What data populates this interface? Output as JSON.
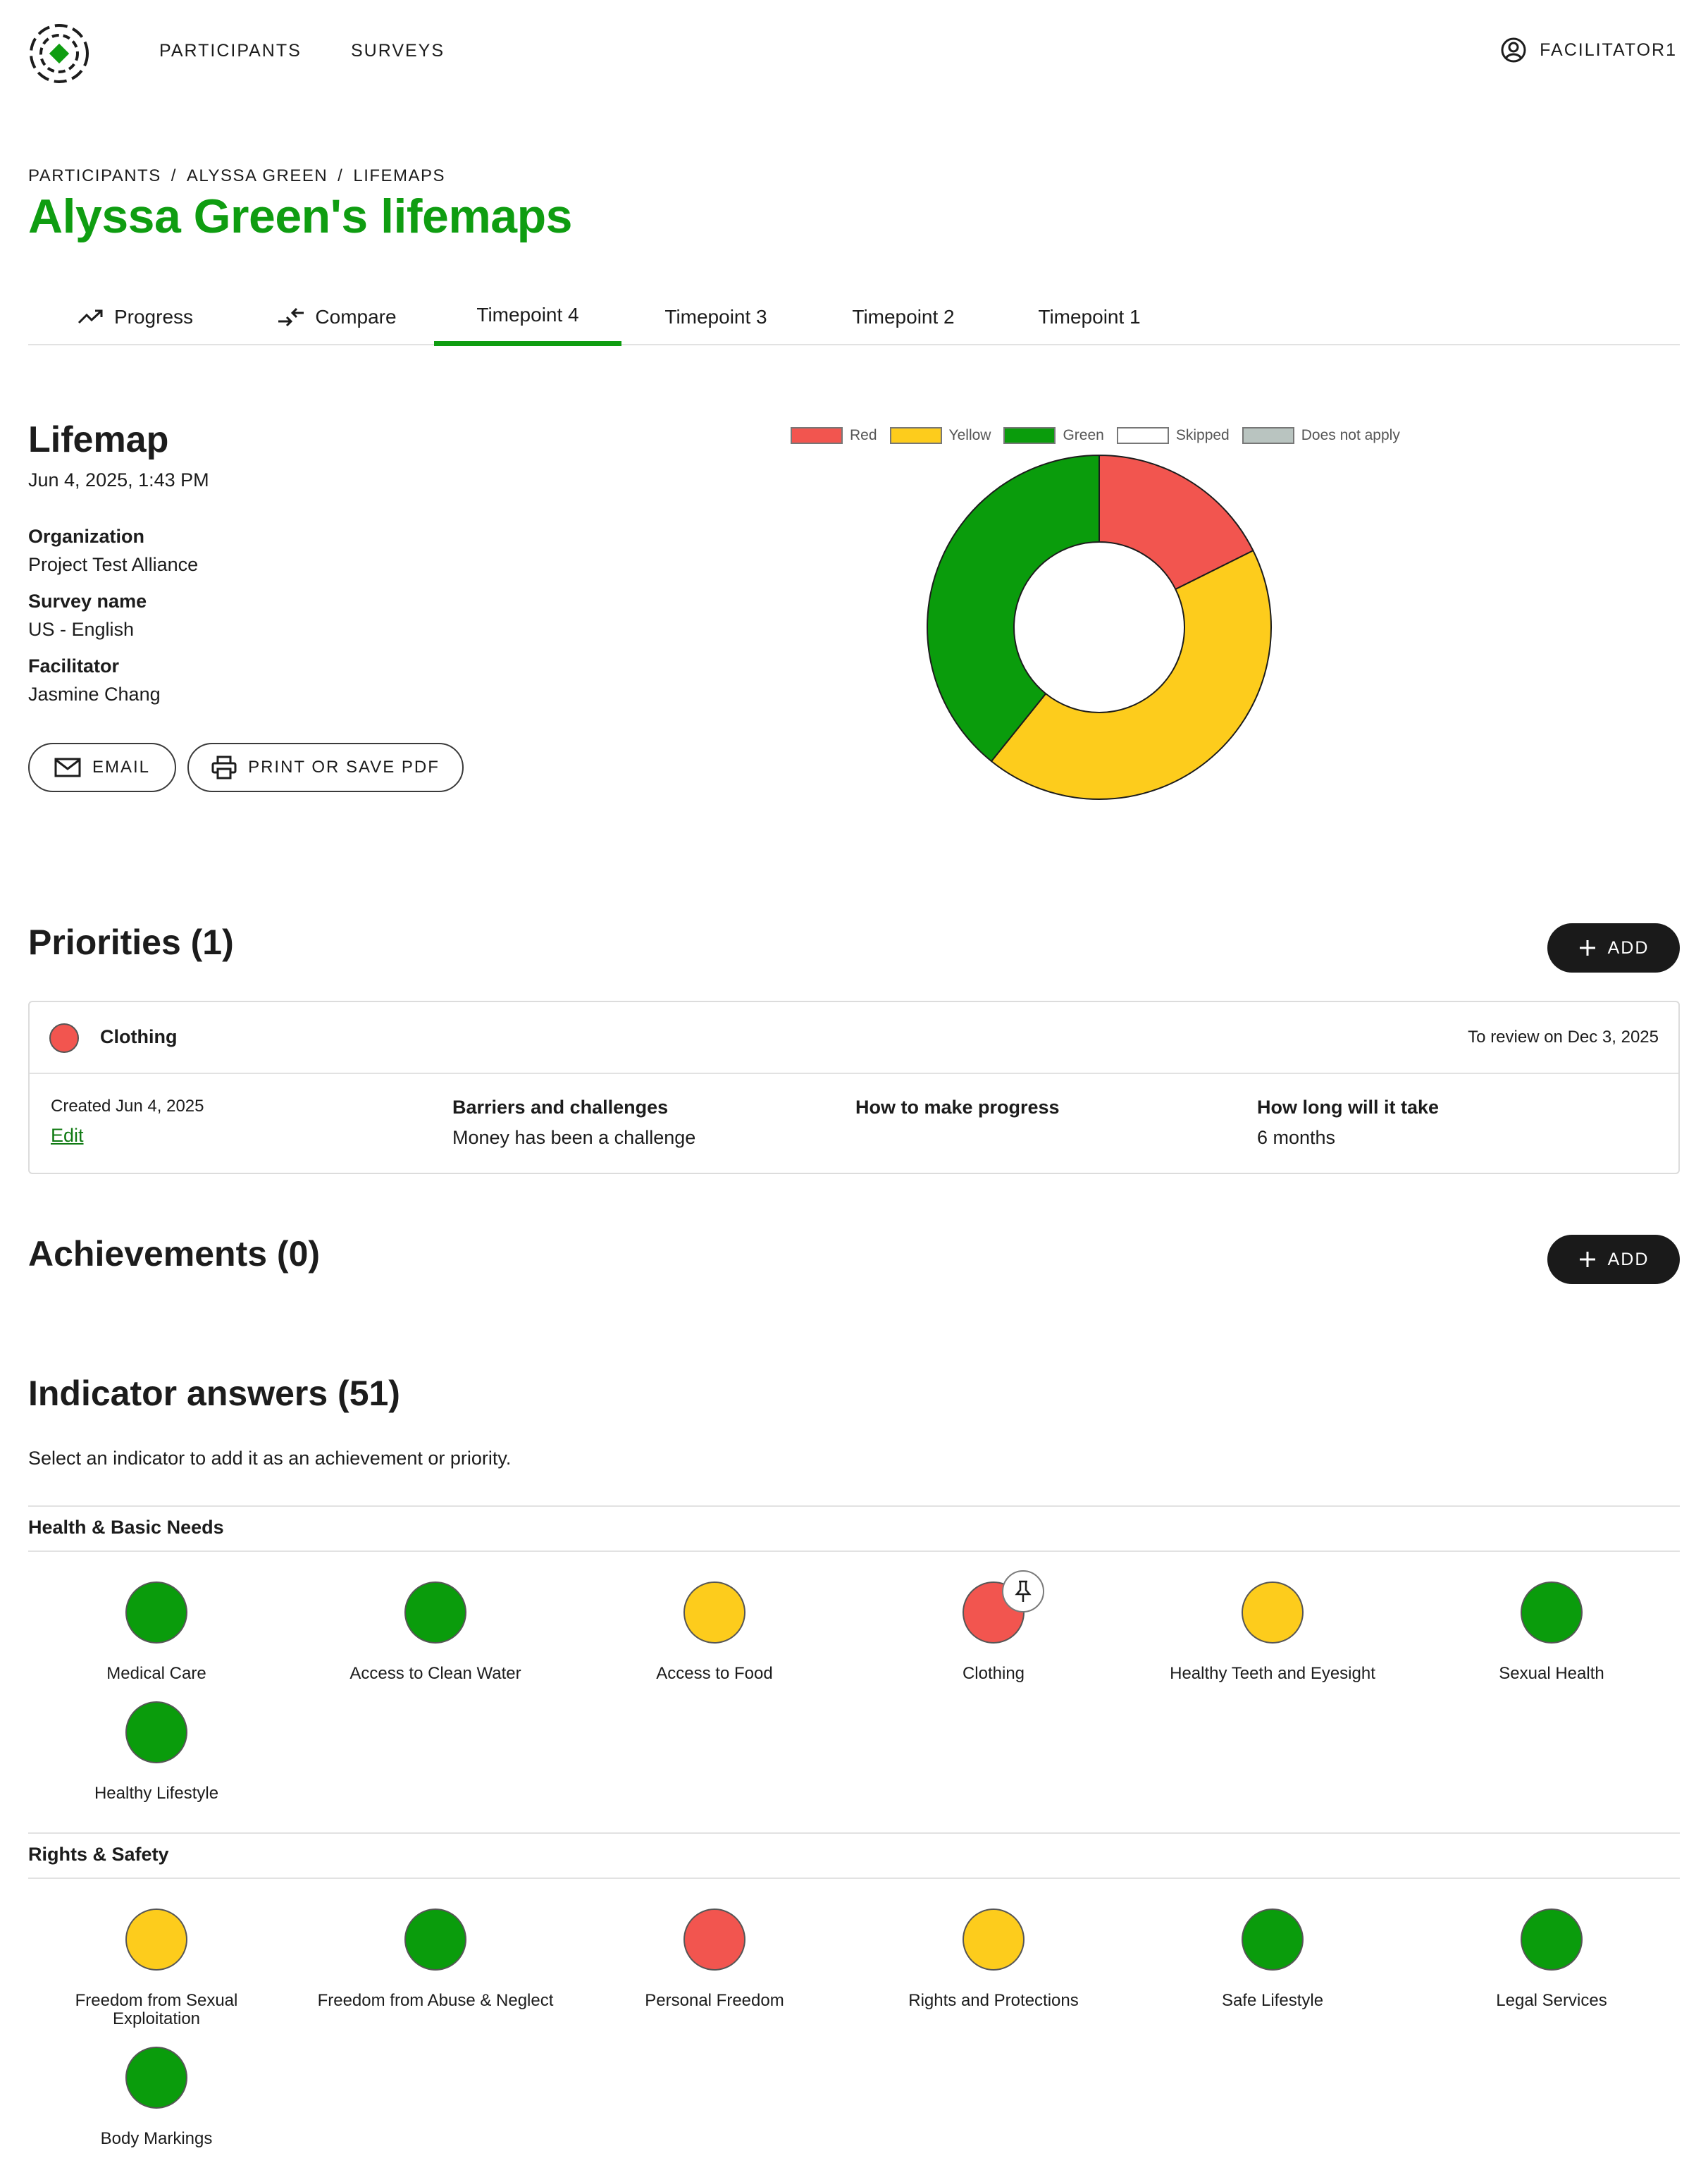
{
  "nav": {
    "links": [
      "PARTICIPANTS",
      "SURVEYS"
    ],
    "user": "FACILITATOR1"
  },
  "breadcrumb": [
    "PARTICIPANTS",
    "ALYSSA GREEN",
    "LIFEMAPS"
  ],
  "title": "Alyssa Green's lifemaps",
  "tabs": [
    {
      "label": "Progress",
      "icon": "trending-up-icon"
    },
    {
      "label": "Compare",
      "icon": "compare-arrows-icon"
    },
    {
      "label": "Timepoint 4",
      "active": true
    },
    {
      "label": "Timepoint 3"
    },
    {
      "label": "Timepoint 2"
    },
    {
      "label": "Timepoint 1"
    }
  ],
  "lifemap": {
    "heading": "Lifemap",
    "date": "Jun 4, 2025, 1:43 PM",
    "fields": [
      {
        "label": "Organization",
        "value": "Project Test Alliance"
      },
      {
        "label": "Survey name",
        "value": "US - English"
      },
      {
        "label": "Facilitator",
        "value": "Jasmine Chang"
      }
    ],
    "email_label": "EMAIL",
    "print_label": "PRINT OR SAVE PDF"
  },
  "chart_data": {
    "type": "pie",
    "legend_position": "top",
    "categories": [
      "Red",
      "Yellow",
      "Green",
      "Skipped",
      "Does not apply"
    ],
    "values": [
      9,
      22,
      20,
      0,
      0
    ],
    "colors": [
      "#f2554f",
      "#fdcc1c",
      "#0a9c0c",
      "#ffffff",
      "#b9c4c0"
    ]
  },
  "priorities": {
    "heading": "Priorities (1)",
    "add_label": "ADD",
    "items": [
      {
        "name": "Clothing",
        "review": "To review on Dec 3, 2025",
        "created": "Created Jun 4, 2025",
        "edit": "Edit",
        "barriers_label": "Barriers and challenges",
        "barriers_value": "Money has been a challenge",
        "progress_label": "How to make progress",
        "progress_value": "",
        "duration_label": "How long will it take",
        "duration_value": "6 months"
      }
    ]
  },
  "achievements": {
    "heading": "Achievements (0)",
    "add_label": "ADD"
  },
  "indicators": {
    "heading": "Indicator answers (51)",
    "subtext": "Select an indicator to add it as an achievement or priority.",
    "groups": [
      {
        "name": "Health & Basic Needs",
        "items": [
          {
            "name": "Medical Care",
            "color": "green"
          },
          {
            "name": "Access to Clean Water",
            "color": "green"
          },
          {
            "name": "Access to Food",
            "color": "yellow"
          },
          {
            "name": "Clothing",
            "color": "red",
            "pinned": true
          },
          {
            "name": "Healthy Teeth and Eyesight",
            "color": "yellow"
          },
          {
            "name": "Sexual Health",
            "color": "green"
          },
          {
            "name": "Healthy Lifestyle",
            "color": "green"
          }
        ]
      },
      {
        "name": "Rights & Safety",
        "items": [
          {
            "name": "Freedom from Sexual Exploitation",
            "color": "yellow"
          },
          {
            "name": "Freedom from Abuse & Neglect",
            "color": "green"
          },
          {
            "name": "Personal Freedom",
            "color": "red"
          },
          {
            "name": "Rights and Protections",
            "color": "yellow"
          },
          {
            "name": "Safe Lifestyle",
            "color": "green"
          },
          {
            "name": "Legal Services",
            "color": "green"
          },
          {
            "name": "Body Markings",
            "color": "green"
          }
        ]
      }
    ]
  }
}
